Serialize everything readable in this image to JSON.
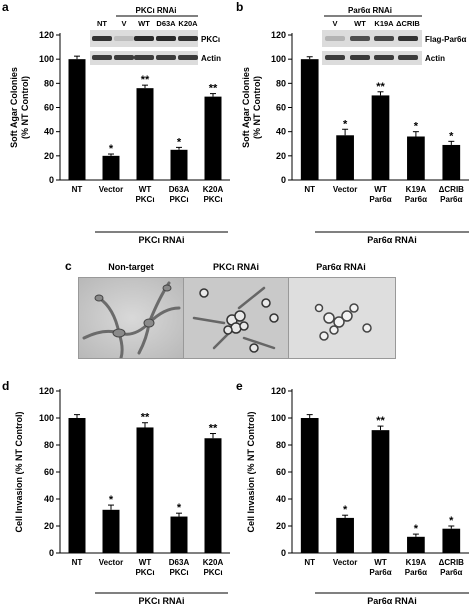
{
  "panels": {
    "a": {
      "letter": "a",
      "ylabel": "Soft Agar Colonies\n(% NT Control)",
      "yticks": [
        0,
        20,
        40,
        60,
        80,
        100,
        120
      ],
      "ylim": [
        0,
        120
      ],
      "group_label": "PKCι RNAi",
      "blot": {
        "header": "PKCι RNAi",
        "lane_labels": [
          "NT",
          "V",
          "WT",
          "D63A",
          "K20A"
        ],
        "rows": [
          "PKCι",
          "Actin"
        ]
      }
    },
    "b": {
      "letter": "b",
      "ylabel": "Soft Agar Colonies\n(% NT Control)",
      "yticks": [
        0,
        20,
        40,
        60,
        80,
        100,
        120
      ],
      "ylim": [
        0,
        120
      ],
      "group_label": "Par6α RNAi",
      "blot": {
        "header": "Par6α RNAi",
        "lane_labels": [
          "V",
          "WT",
          "K19A",
          "ΔCRIB"
        ],
        "rows": [
          "Flag-Par6α",
          "Actin"
        ]
      }
    },
    "c": {
      "letter": "c",
      "labels": [
        "Non-target",
        "PKCι RNAi",
        "Par6α RNAi"
      ]
    },
    "d": {
      "letter": "d",
      "ylabel": "Cell Invasion (% NT Control)",
      "yticks": [
        0,
        20,
        40,
        60,
        80,
        100,
        120
      ],
      "ylim": [
        0,
        120
      ],
      "group_label": "PKCι RNAi"
    },
    "e": {
      "letter": "e",
      "ylabel": "Cell Invasion (% NT Control)",
      "yticks": [
        0,
        20,
        40,
        60,
        80,
        100,
        120
      ],
      "ylim": [
        0,
        120
      ],
      "group_label": "Par6α RNAi"
    }
  },
  "chart_data": [
    {
      "panel": "a",
      "type": "bar",
      "categories": [
        "NT",
        "Vector",
        "WT\nPKCι",
        "D63A\nPKCι",
        "K20A\nPKCι"
      ],
      "values": [
        100,
        20,
        76,
        25,
        69
      ],
      "errors": [
        2.5,
        1.5,
        2.5,
        2,
        2.5
      ],
      "significance": [
        "",
        "*",
        "**",
        "*",
        "**"
      ],
      "ylabel": "Soft Agar Colonies\n(% NT Control)",
      "ylim": [
        0,
        120
      ]
    },
    {
      "panel": "b",
      "type": "bar",
      "categories": [
        "NT",
        "Vector",
        "WT\nPar6α",
        "K19A\nPar6α",
        "ΔCRIB\nPar6α"
      ],
      "values": [
        100,
        37,
        70,
        36,
        29
      ],
      "errors": [
        2,
        5,
        3,
        4,
        3
      ],
      "significance": [
        "",
        "*",
        "**",
        "*",
        "*"
      ],
      "ylabel": "Soft Agar Colonies\n(% NT Control)",
      "ylim": [
        0,
        120
      ]
    },
    {
      "panel": "d",
      "type": "bar",
      "categories": [
        "NT",
        "Vector",
        "WT\nPKCι",
        "D63A\nPKCι",
        "K20A\nPKCι"
      ],
      "values": [
        100,
        32,
        93,
        27,
        85
      ],
      "errors": [
        2.5,
        3.5,
        3.5,
        2.5,
        3.5
      ],
      "significance": [
        "",
        "*",
        "**",
        "*",
        "**"
      ],
      "ylabel": "Cell Invasion (% NT Control)",
      "ylim": [
        0,
        120
      ]
    },
    {
      "panel": "e",
      "type": "bar",
      "categories": [
        "NT",
        "Vector",
        "WT\nPar6α",
        "K19A\nPar6α",
        "ΔCRIB\nPar6α"
      ],
      "values": [
        100,
        26,
        91,
        12,
        18
      ],
      "errors": [
        2.5,
        2,
        3,
        2,
        2
      ],
      "significance": [
        "",
        "*",
        "**",
        "*",
        "*"
      ],
      "ylabel": "Cell Invasion (% NT Control)",
      "ylim": [
        0,
        120
      ]
    }
  ]
}
